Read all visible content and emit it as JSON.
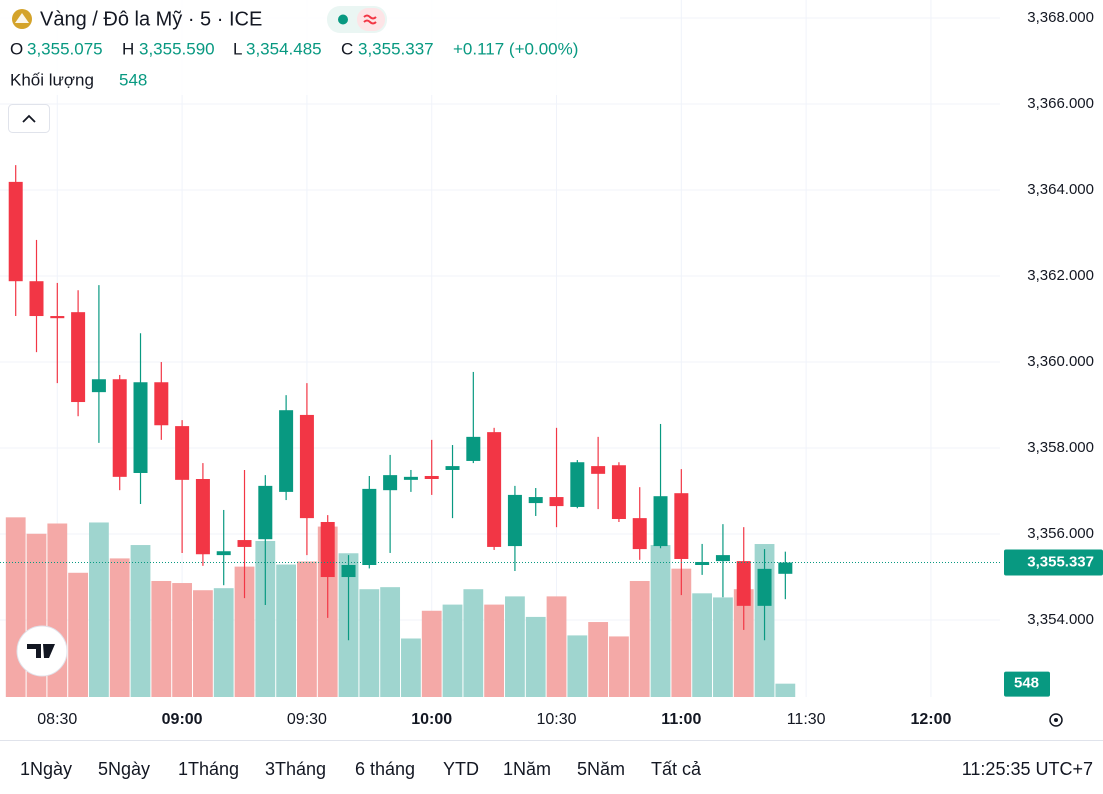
{
  "chart_data": {
    "type": "candlestick",
    "title": "Vàng / Đô la Mỹ · 5 · ICE",
    "legend": {
      "open_label": "O",
      "open": "3,355.075",
      "high_label": "H",
      "high": "3,355.590",
      "low_label": "L",
      "low": "3,354.485",
      "close_label": "C",
      "close": "3,355.337",
      "change": "+0.117 (+0.00%)",
      "volume_label": "Khối lượng",
      "volume": "548"
    },
    "up_color": "#089981",
    "down_color": "#f23645",
    "up_volume_color": "#9fd5cf",
    "down_volume_color": "#f4a9a7",
    "open": [
      3364.19,
      3361.88,
      3361.07,
      3361.16,
      3359.3,
      3359.6,
      3357.42,
      3359.53,
      3358.51,
      3357.28,
      3355.51,
      3355.86,
      3355.88,
      3356.98,
      3358.77,
      3356.28,
      3355.0,
      3355.28,
      3357.02,
      3357.26,
      3357.35,
      3357.49,
      3357.7,
      3358.37,
      3355.72,
      3356.72,
      3356.86,
      3356.63,
      3357.58,
      3357.6,
      3356.37,
      3355.72,
      3356.95,
      3355.28,
      3355.37,
      3355.37,
      3354.33,
      3355.075
    ],
    "high": [
      3364.58,
      3362.84,
      3361.84,
      3361.67,
      3361.79,
      3359.7,
      3360.67,
      3360.0,
      3358.65,
      3357.65,
      3356.56,
      3357.49,
      3357.37,
      3359.23,
      3359.51,
      3356.44,
      3355.51,
      3357.35,
      3357.84,
      3357.49,
      3358.19,
      3358.07,
      3359.77,
      3358.47,
      3357.12,
      3357.07,
      3358.47,
      3357.72,
      3358.26,
      3357.67,
      3357.09,
      3358.56,
      3357.51,
      3355.77,
      3356.23,
      3356.16,
      3355.65,
      3355.59
    ],
    "low": [
      3361.07,
      3360.23,
      3359.51,
      3358.74,
      3358.12,
      3357.02,
      3356.7,
      3358.19,
      3355.56,
      3355.26,
      3354.81,
      3354.51,
      3354.35,
      3356.79,
      3355.51,
      3354.05,
      3353.53,
      3355.2,
      3355.56,
      3356.98,
      3356.91,
      3356.37,
      3357.65,
      3355.63,
      3355.14,
      3356.42,
      3356.16,
      3356.6,
      3356.58,
      3356.28,
      3355.4,
      3355.67,
      3354.58,
      3355.05,
      3354.53,
      3353.77,
      3353.53,
      3354.485
    ],
    "close": [
      3361.88,
      3361.07,
      3361.02,
      3359.07,
      3359.6,
      3357.33,
      3359.53,
      3358.53,
      3357.26,
      3355.53,
      3355.6,
      3355.7,
      3357.12,
      3358.88,
      3356.37,
      3355.0,
      3355.28,
      3357.05,
      3357.37,
      3357.33,
      3357.28,
      3357.58,
      3358.26,
      3355.7,
      3356.91,
      3356.86,
      3356.65,
      3357.67,
      3357.4,
      3356.35,
      3355.65,
      3356.88,
      3355.42,
      3355.35,
      3355.51,
      3354.33,
      3355.19,
      3355.337
    ],
    "volume": [
      7385,
      6710,
      7132,
      5106,
      7174,
      5697,
      6246,
      4769,
      4684,
      4389,
      4473,
      5359,
      6414,
      5444,
      5570,
      7005,
      5908,
      4431,
      4515,
      2405,
      3545,
      3798,
      4431,
      3798,
      4136,
      3292,
      4136,
      2532,
      3081,
      2490,
      4769,
      6246,
      5275,
      4262,
      4093,
      4431,
      6288,
      548
    ],
    "ylim": [
      3352.21,
      3368.42
    ],
    "y2lim": [
      0,
      28650
    ],
    "xlim": [
      -0.755,
      47.32
    ],
    "yticks": [
      {
        "value": 3354,
        "label": "3,354.000"
      },
      {
        "value": 3356,
        "label": "3,356.000"
      },
      {
        "value": 3358,
        "label": "3,358.000"
      },
      {
        "value": 3360,
        "label": "3,360.000"
      },
      {
        "value": 3362,
        "label": "3,362.000"
      },
      {
        "value": 3364,
        "label": "3,364.000"
      },
      {
        "value": 3366,
        "label": "3,366.000"
      },
      {
        "value": 3368,
        "label": "3,368.000"
      }
    ],
    "xticks": [
      {
        "value": 2,
        "label": "08:30"
      },
      {
        "value": 8,
        "label": "09:00"
      },
      {
        "value": 14,
        "label": "09:30"
      },
      {
        "value": 20,
        "label": "10:00"
      },
      {
        "value": 26,
        "label": "10:30"
      },
      {
        "value": 32,
        "label": "11:00"
      },
      {
        "value": 38,
        "label": "11:30"
      },
      {
        "value": 44,
        "label": "12:00"
      }
    ],
    "last_price": {
      "value": 3355.337,
      "label": "3,355.337"
    },
    "last_volume_label": "548",
    "grid": true,
    "ranges": [
      "1Ngày",
      "5Ngày",
      "1Tháng",
      "3Tháng",
      "6 tháng",
      "YTD",
      "1Năm",
      "5Năm",
      "Tất cả"
    ],
    "clock": "11:25:35 UTC+7"
  }
}
